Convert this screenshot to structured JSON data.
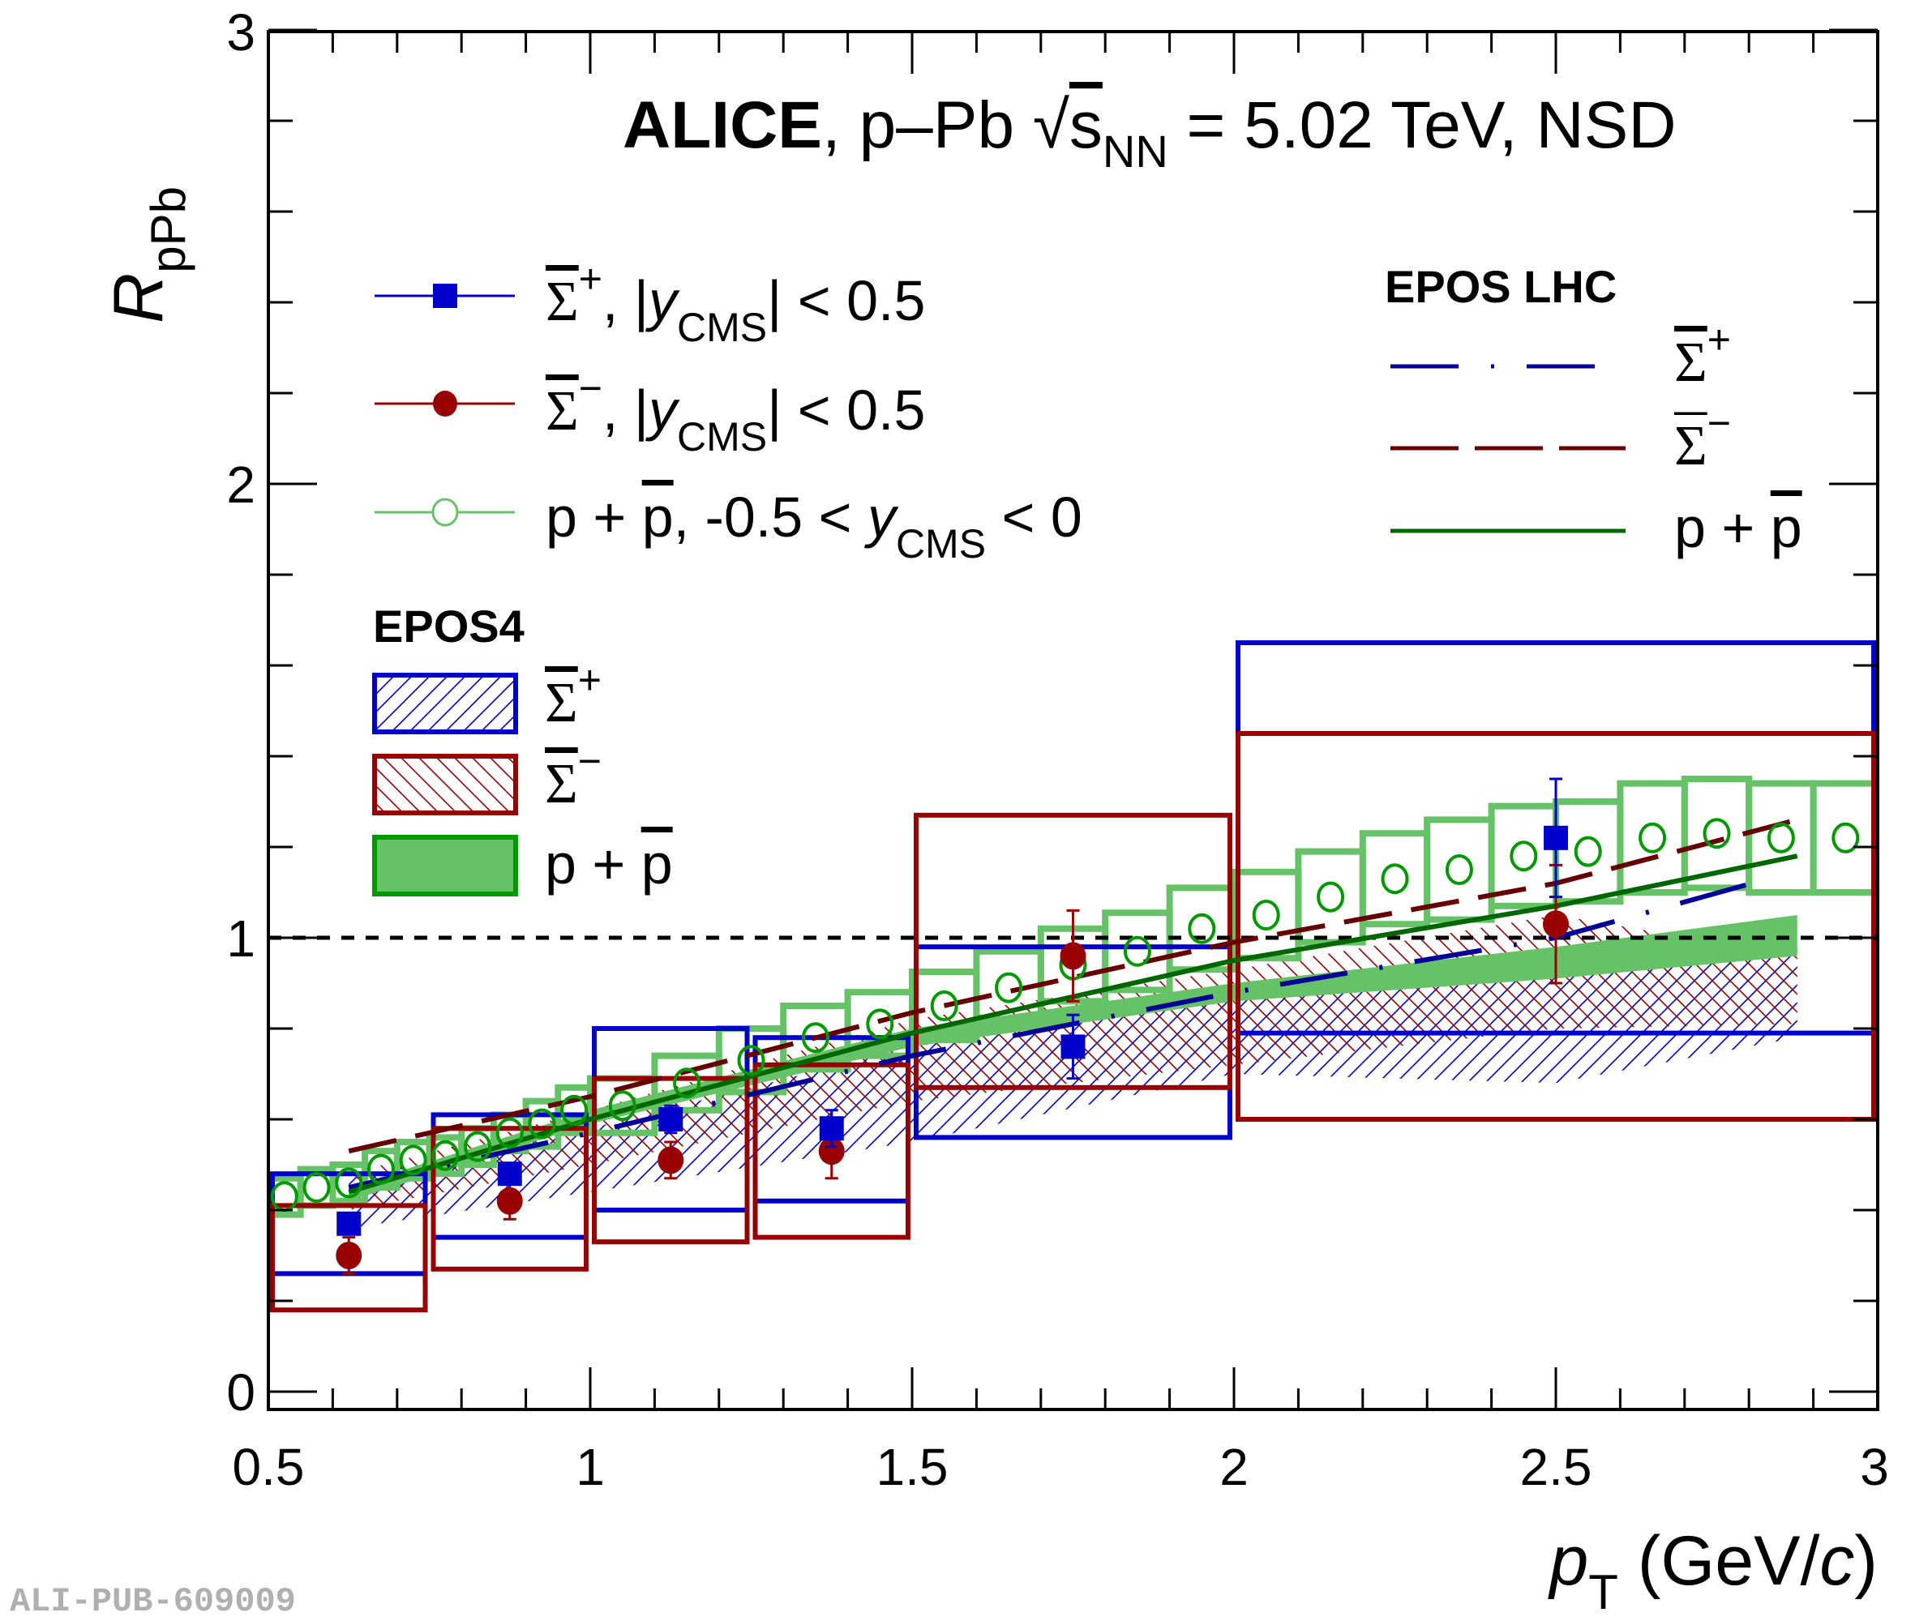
{
  "watermark": "ALI-PUB-609009",
  "header": {
    "experiment": "ALICE",
    "system": ", p–Pb ",
    "sqrt": "√",
    "s": "s",
    "sub": "NN",
    "energy": " = 5.02 TeV, NSD"
  },
  "legend_data": {
    "items": [
      {
        "sym": "Σ",
        "sup": "+",
        "text": ", |",
        "var": "y",
        "sub": "CMS",
        "tail": "| < 0.5"
      },
      {
        "sym": "Σ",
        "sup": "−",
        "text": ", |",
        "var": "y",
        "sub": "CMS",
        "tail": "| < 0.5"
      },
      {
        "sym": "p + ",
        "pbar": "p",
        "text": ", -0.5 < ",
        "var": "y",
        "sub": "CMS",
        "tail": " < 0"
      }
    ]
  },
  "legend_epos4": {
    "title": "EPOS4",
    "items": [
      {
        "sym": "Σ",
        "sup": "+"
      },
      {
        "sym": "Σ",
        "sup": "−"
      },
      {
        "sym": "p + ",
        "pbar": "p"
      }
    ]
  },
  "legend_eposlhc": {
    "title": "EPOS LHC",
    "items": [
      {
        "sym": "Σ",
        "sup": "+"
      },
      {
        "sym": "Σ",
        "sup": "−"
      },
      {
        "sym": "p + ",
        "pbar": "p"
      }
    ]
  },
  "colors": {
    "sigma_plus": "#0000cc",
    "sigma_minus": "#990000",
    "proton": "#009900",
    "proton_light": "#66c266",
    "lhc_sigma_plus": "#000099",
    "lhc_sigma_minus": "#660000",
    "lhc_proton": "#006600"
  },
  "chart_data": {
    "type": "scatter",
    "title": "ALICE, p–Pb √s_NN = 5.02 TeV, NSD",
    "xlabel": "p_T (GeV/c)",
    "ylabel": "R_pPb",
    "xlim": [
      0.5,
      3.0
    ],
    "ylim": [
      0,
      3
    ],
    "xticks": [
      0.5,
      1,
      1.5,
      2,
      2.5,
      3
    ],
    "xtick_labels": [
      "0.5",
      "1",
      "1.5",
      "2",
      "2.5",
      "3"
    ],
    "yticks": [
      0,
      1,
      2,
      3
    ],
    "ytick_labels": [
      "0",
      "1",
      "2",
      "3"
    ],
    "reference_line": 1,
    "grid": false,
    "legend_placement": [
      "upper-left",
      "middle-left",
      "upper-right"
    ],
    "series": [
      {
        "name": "Sigma-bar+ |y_CMS| < 0.5",
        "marker": "square",
        "x": [
          0.625,
          0.875,
          1.125,
          1.375,
          1.75,
          2.5
        ],
        "y": [
          0.37,
          0.48,
          0.6,
          0.58,
          0.76,
          1.22
        ],
        "stat_err": [
          0.02,
          0.02,
          0.03,
          0.04,
          0.07,
          0.13
        ],
        "sys_box_x": [
          [
            0.5,
            0.75
          ],
          [
            0.75,
            1.0
          ],
          [
            1.0,
            1.25
          ],
          [
            1.25,
            1.5
          ],
          [
            1.5,
            2.0
          ],
          [
            2.0,
            3.0
          ]
        ],
        "sys_box_y": [
          [
            0.26,
            0.48
          ],
          [
            0.34,
            0.61
          ],
          [
            0.4,
            0.8
          ],
          [
            0.42,
            0.78
          ],
          [
            0.56,
            0.98
          ],
          [
            0.79,
            1.65
          ]
        ]
      },
      {
        "name": "Sigma-bar- |y_CMS| < 0.5",
        "marker": "circle",
        "x": [
          0.625,
          0.875,
          1.125,
          1.375,
          1.75,
          2.5
        ],
        "y": [
          0.3,
          0.42,
          0.51,
          0.53,
          0.96,
          1.03
        ],
        "stat_err": [
          0.04,
          0.04,
          0.04,
          0.06,
          0.1,
          0.13
        ],
        "sys_box_x": [
          [
            0.5,
            0.75
          ],
          [
            0.75,
            1.0
          ],
          [
            1.0,
            1.25
          ],
          [
            1.25,
            1.5
          ],
          [
            1.5,
            2.0
          ],
          [
            2.0,
            3.0
          ]
        ],
        "sys_box_y": [
          [
            0.18,
            0.41
          ],
          [
            0.27,
            0.58
          ],
          [
            0.33,
            0.69
          ],
          [
            0.34,
            0.72
          ],
          [
            0.67,
            1.27
          ],
          [
            0.6,
            1.45
          ]
        ]
      },
      {
        "name": "p + p-bar, -0.5 < y_CMS < 0",
        "marker": "open-circle",
        "x": [
          0.525,
          0.575,
          0.625,
          0.675,
          0.725,
          0.775,
          0.825,
          0.875,
          0.925,
          0.975,
          1.05,
          1.15,
          1.25,
          1.35,
          1.45,
          1.55,
          1.65,
          1.75,
          1.85,
          1.95,
          2.05,
          2.15,
          2.25,
          2.35,
          2.45,
          2.55,
          2.65,
          2.75,
          2.85,
          2.95
        ],
        "y": [
          0.43,
          0.45,
          0.46,
          0.49,
          0.51,
          0.52,
          0.54,
          0.57,
          0.59,
          0.62,
          0.63,
          0.68,
          0.73,
          0.78,
          0.81,
          0.85,
          0.89,
          0.94,
          0.97,
          1.02,
          1.05,
          1.09,
          1.13,
          1.15,
          1.18,
          1.19,
          1.22,
          1.23,
          1.22,
          1.22
        ],
        "sys_err": [
          0.04,
          0.04,
          0.04,
          0.04,
          0.04,
          0.04,
          0.04,
          0.04,
          0.05,
          0.05,
          0.06,
          0.06,
          0.07,
          0.07,
          0.07,
          0.075,
          0.08,
          0.08,
          0.085,
          0.09,
          0.095,
          0.1,
          0.1,
          0.11,
          0.11,
          0.11,
          0.12,
          0.12,
          0.12,
          0.12
        ]
      }
    ],
    "models": [
      {
        "name": "EPOS4 Sigma-bar+",
        "type": "band",
        "style": "hatch-forward",
        "x": [
          0.625,
          1.0,
          1.5,
          2.0,
          2.5,
          2.875
        ],
        "low": [
          0.36,
          0.44,
          0.55,
          0.7,
          0.68,
          0.78
        ],
        "high": [
          0.47,
          0.58,
          0.76,
          0.86,
          0.92,
          0.98
        ]
      },
      {
        "name": "EPOS4 Sigma-bar-",
        "type": "band",
        "style": "hatch-back",
        "x": [
          0.625,
          1.0,
          1.5,
          2.0,
          2.5,
          2.875
        ],
        "low": [
          0.4,
          0.5,
          0.64,
          0.72,
          0.8,
          0.81
        ],
        "high": [
          0.48,
          0.62,
          0.82,
          0.93,
          1.05,
          0.96
        ]
      },
      {
        "name": "EPOS4 p + p-bar",
        "type": "band",
        "style": "fill",
        "x": [
          0.625,
          1.0,
          1.5,
          2.0,
          2.5,
          2.875
        ],
        "low": [
          0.42,
          0.59,
          0.76,
          0.86,
          0.91,
          0.96
        ],
        "high": [
          0.45,
          0.62,
          0.8,
          0.9,
          0.98,
          1.05
        ]
      },
      {
        "name": "EPOS LHC Sigma-bar+",
        "type": "line",
        "style": "dash-dot",
        "x": [
          0.625,
          1.0,
          1.5,
          2.0,
          2.5,
          2.83
        ],
        "y": [
          0.45,
          0.57,
          0.74,
          0.88,
          1.0,
          1.13
        ]
      },
      {
        "name": "EPOS LHC Sigma-bar-",
        "type": "line",
        "style": "dashed",
        "x": [
          0.625,
          1.0,
          1.5,
          2.0,
          2.5,
          2.875
        ],
        "y": [
          0.53,
          0.65,
          0.835,
          0.99,
          1.12,
          1.26
        ]
      },
      {
        "name": "EPOS LHC p + p-bar",
        "type": "line",
        "style": "solid",
        "x": [
          0.625,
          1.0,
          1.5,
          2.0,
          2.5,
          2.875
        ],
        "y": [
          0.44,
          0.6,
          0.79,
          0.95,
          1.07,
          1.18
        ]
      }
    ]
  }
}
